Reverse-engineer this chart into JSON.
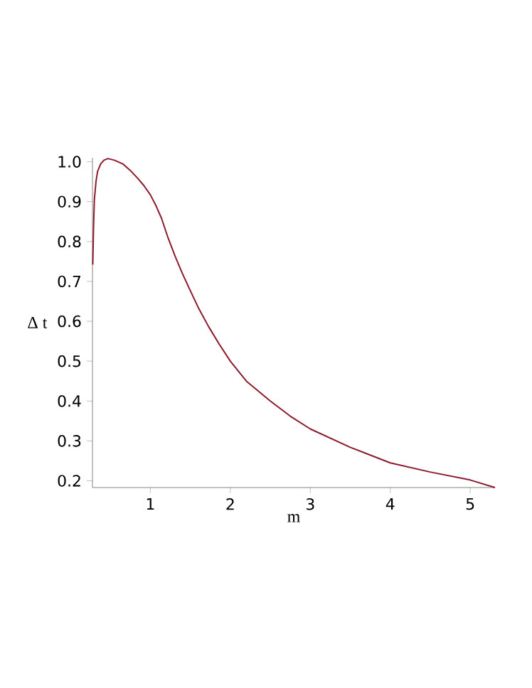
{
  "chart_data": {
    "type": "line",
    "xlabel": "m",
    "ylabel": "Δ t",
    "x": [
      0.28,
      0.29,
      0.3,
      0.32,
      0.34,
      0.38,
      0.42,
      0.47,
      0.55,
      0.66,
      0.75,
      0.84,
      0.92,
      1.0,
      1.07,
      1.14,
      1.22,
      1.31,
      1.4,
      1.49,
      1.6,
      1.73,
      1.86,
      2.0,
      2.2,
      2.5,
      2.75,
      3.0,
      3.5,
      4.0,
      4.5,
      5.0,
      5.31
    ],
    "series": [
      {
        "color": "#8b1a2b",
        "values": [
          0.742,
          0.84,
          0.905,
          0.95,
          0.976,
          0.995,
          1.004,
          1.008,
          1.004,
          0.994,
          0.978,
          0.959,
          0.94,
          0.917,
          0.89,
          0.858,
          0.81,
          0.763,
          0.72,
          0.681,
          0.634,
          0.586,
          0.543,
          0.5,
          0.45,
          0.4,
          0.362,
          0.33,
          0.284,
          0.245,
          0.222,
          0.202,
          0.183
        ]
      }
    ],
    "xlim": [
      0.276,
      5.31
    ],
    "ylim": [
      0.183,
      1.01
    ],
    "xticks": [
      1,
      2,
      3,
      4,
      5
    ],
    "yticks": [
      0.2,
      0.3,
      0.4,
      0.5,
      0.6,
      0.7,
      0.8,
      0.9,
      {
        "value": 1.0,
        "label": "1.0"
      }
    ],
    "grid": false,
    "legend": false,
    "marker": "none",
    "line_style": "solid"
  }
}
